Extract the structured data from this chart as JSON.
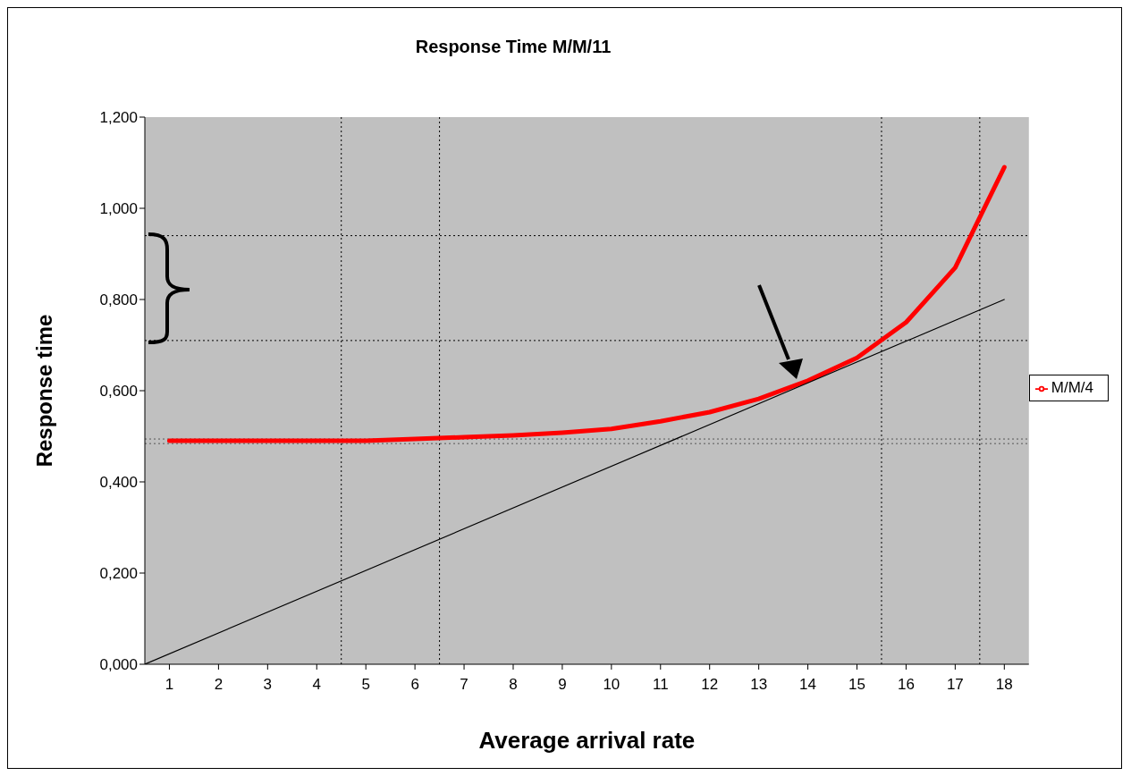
{
  "chart_data": {
    "type": "line",
    "title": "Response Time M/M/11",
    "xlabel": "Average arrival rate",
    "ylabel": "Response time",
    "x": [
      1,
      2,
      3,
      4,
      5,
      6,
      7,
      8,
      9,
      10,
      11,
      12,
      13,
      14,
      15,
      16,
      17,
      18
    ],
    "series": [
      {
        "name": "M/M/4",
        "color": "#ff0000",
        "values": [
          0.49,
          0.49,
          0.49,
          0.49,
          0.49,
          0.494,
          0.498,
          0.502,
          0.508,
          0.516,
          0.533,
          0.553,
          0.582,
          0.622,
          0.672,
          0.75,
          0.87,
          1.09
        ]
      },
      {
        "type": "line",
        "color": "#000000",
        "x": [
          0.5,
          18
        ],
        "values": [
          0,
          0.8
        ]
      }
    ],
    "xlim": [
      0.5,
      18.5
    ],
    "xticks": [
      1,
      2,
      3,
      4,
      5,
      6,
      7,
      8,
      9,
      10,
      11,
      12,
      13,
      14,
      15,
      16,
      17,
      18
    ],
    "ylim": [
      0,
      1.2
    ],
    "yticks": [
      {
        "value": 0,
        "label": "0,000"
      },
      {
        "value": 0.2,
        "label": "0,200"
      },
      {
        "value": 0.4,
        "label": "0,400"
      },
      {
        "value": 0.6,
        "label": "0,600"
      },
      {
        "value": 0.8,
        "label": "0,800"
      },
      {
        "value": 1.0,
        "label": "1,000"
      },
      {
        "value": 1.2,
        "label": "1,200"
      }
    ],
    "ref_lines": [
      {
        "axis": "y",
        "value": 0.94,
        "line_style": "dotted",
        "color": "#000000"
      },
      {
        "axis": "y",
        "value": 0.71,
        "line_style": "dotted",
        "color": "#000000"
      },
      {
        "axis": "y",
        "value": 0.494,
        "line_style": "dotted",
        "color": "#555555"
      },
      {
        "axis": "y",
        "value": 0.484,
        "line_style": "dotted",
        "color": "#555555"
      },
      {
        "axis": "x",
        "value": 4.5,
        "line_style": "dotted",
        "color": "#000000"
      },
      {
        "axis": "x",
        "value": 6.5,
        "line_style": "dotted",
        "color": "#000000"
      },
      {
        "axis": "x",
        "value": 15.5,
        "line_style": "dotted",
        "color": "#000000"
      },
      {
        "axis": "x",
        "value": 17.5,
        "line_style": "dotted",
        "color": "#000000"
      }
    ],
    "grid": false,
    "legend": "right",
    "marker": "none"
  }
}
